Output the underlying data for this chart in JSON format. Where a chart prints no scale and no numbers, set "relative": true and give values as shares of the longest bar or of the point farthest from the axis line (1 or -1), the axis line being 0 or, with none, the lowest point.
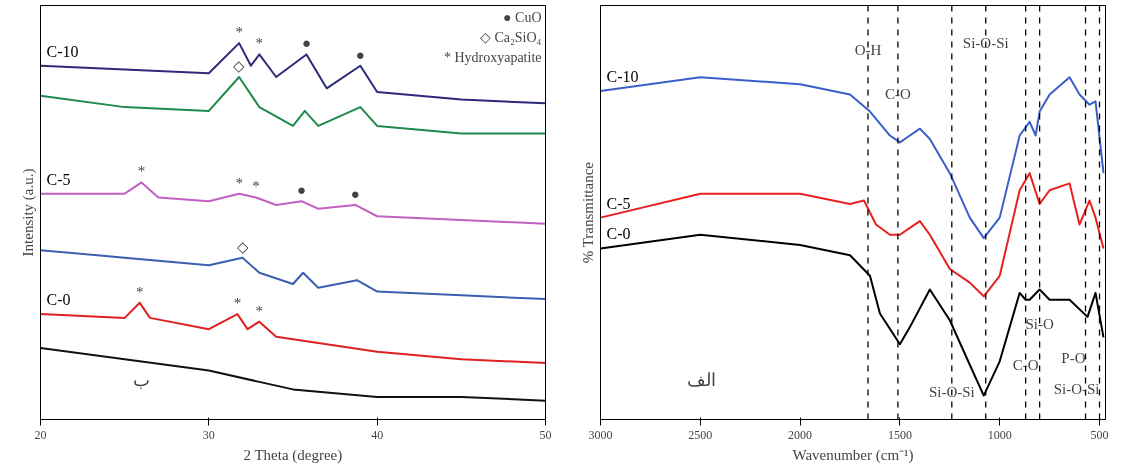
{
  "chart_data": [
    {
      "type": "line",
      "relative": true,
      "xlabel": "2 Theta (degree)",
      "ylabel": "Intensity (a.u.)",
      "xlim": [
        20,
        50
      ],
      "xticks": [
        20,
        30,
        40,
        50
      ],
      "tick_labels": "x",
      "grid": false,
      "legend": false,
      "series": [
        {
          "name": "C-10",
          "color": "#2e2a7a",
          "x": [
            20,
            25,
            30,
            31.8,
            32.5,
            33,
            34,
            35.8,
            37,
            39,
            40,
            45,
            50
          ],
          "values": [
            0.94,
            0.93,
            0.92,
            1.0,
            0.94,
            0.97,
            0.91,
            0.97,
            0.88,
            0.94,
            0.87,
            0.85,
            0.84
          ]
        },
        {
          "color": "#1f8a4a",
          "x": [
            20,
            25,
            30,
            31.8,
            33,
            35,
            35.7,
            36.5,
            39,
            40,
            45,
            50
          ],
          "values": [
            0.86,
            0.83,
            0.82,
            0.91,
            0.83,
            0.78,
            0.82,
            0.78,
            0.83,
            0.78,
            0.76,
            0.76
          ]
        },
        {
          "name": "C-5",
          "color": "#c060c0",
          "x": [
            20,
            25,
            26,
            27,
            30,
            31.8,
            32.8,
            34,
            35.5,
            36.5,
            38.7,
            40,
            45,
            50
          ],
          "values": [
            0.6,
            0.6,
            0.63,
            0.59,
            0.58,
            0.6,
            0.59,
            0.57,
            0.58,
            0.56,
            0.57,
            0.54,
            0.53,
            0.52
          ]
        },
        {
          "color": "#3a5fb0",
          "x": [
            20,
            25,
            30,
            32,
            33,
            35,
            35.6,
            36.5,
            38.8,
            40,
            45,
            50
          ],
          "values": [
            0.45,
            0.43,
            0.41,
            0.43,
            0.39,
            0.36,
            0.39,
            0.35,
            0.37,
            0.34,
            0.33,
            0.32
          ]
        },
        {
          "name": "C-0",
          "color": "#e02020",
          "x": [
            20,
            25,
            25.9,
            26.5,
            30,
            31.7,
            32.3,
            33,
            34,
            40,
            45,
            50
          ],
          "values": [
            0.28,
            0.27,
            0.31,
            0.27,
            0.24,
            0.28,
            0.24,
            0.26,
            0.22,
            0.18,
            0.16,
            0.15
          ]
        },
        {
          "color": "#111111",
          "x": [
            20,
            25,
            30,
            33,
            35,
            40,
            45,
            50
          ],
          "values": [
            0.19,
            0.16,
            0.13,
            0.1,
            0.08,
            0.06,
            0.06,
            0.05
          ]
        }
      ],
      "annotations": [
        "● CuO",
        "◇ Ca₂SiO₄",
        "* Hydroxyapatite",
        "ب",
        {
          "text": "*",
          "x": 31.8,
          "y": 1.0
        },
        {
          "text": "*",
          "x": 33,
          "y": 0.97
        },
        {
          "text": "●",
          "x": 35.8,
          "y": 0.97
        },
        {
          "text": "●",
          "x": 39,
          "y": 0.94
        },
        {
          "text": "◇",
          "x": 31.8,
          "y": 0.91
        },
        {
          "text": "*",
          "x": 26,
          "y": 0.63
        },
        {
          "text": "*",
          "x": 31.8,
          "y": 0.6
        },
        {
          "text": "*",
          "x": 32.8,
          "y": 0.59
        },
        {
          "text": "●",
          "x": 35.5,
          "y": 0.58
        },
        {
          "text": "●",
          "x": 38.7,
          "y": 0.57
        },
        {
          "text": "◇",
          "x": 32,
          "y": 0.43
        },
        {
          "text": "*",
          "x": 25.9,
          "y": 0.31
        },
        {
          "text": "*",
          "x": 31.7,
          "y": 0.28
        },
        {
          "text": "*",
          "x": 33,
          "y": 0.26
        }
      ]
    },
    {
      "type": "line",
      "relative": true,
      "xlabel": "Wavenumber (cm⁻¹)",
      "ylabel": "% Transmittance",
      "xlim": [
        3000,
        470
      ],
      "xticks": [
        3000,
        2500,
        2000,
        1500,
        1000,
        500
      ],
      "tick_labels": "x",
      "grid": false,
      "legend": false,
      "series": [
        {
          "name": "C-10",
          "color": "#3a5fc8",
          "x": [
            3000,
            2500,
            2000,
            1750,
            1650,
            1550,
            1500,
            1450,
            1400,
            1350,
            1250,
            1150,
            1080,
            1000,
            900,
            850,
            820,
            800,
            750,
            650,
            600,
            550,
            520,
            480
          ],
          "values": [
            0.96,
            1.0,
            0.98,
            0.95,
            0.9,
            0.83,
            0.81,
            0.83,
            0.85,
            0.82,
            0.72,
            0.59,
            0.53,
            0.59,
            0.83,
            0.87,
            0.83,
            0.9,
            0.95,
            1.0,
            0.95,
            0.92,
            0.93,
            0.72
          ]
        },
        {
          "name": "C-5",
          "color": "#e82020",
          "x": [
            3000,
            2500,
            2000,
            1750,
            1680,
            1620,
            1550,
            1500,
            1450,
            1400,
            1350,
            1250,
            1150,
            1080,
            1000,
            900,
            850,
            800,
            750,
            650,
            600,
            550,
            520,
            480
          ],
          "values": [
            0.59,
            0.66,
            0.66,
            0.63,
            0.64,
            0.57,
            0.54,
            0.54,
            0.56,
            0.58,
            0.54,
            0.44,
            0.4,
            0.36,
            0.42,
            0.67,
            0.72,
            0.63,
            0.67,
            0.69,
            0.57,
            0.64,
            0.59,
            0.5
          ]
        },
        {
          "name": "C-0",
          "color": "#000000",
          "x": [
            3000,
            2500,
            2000,
            1750,
            1650,
            1600,
            1500,
            1450,
            1350,
            1250,
            1150,
            1080,
            1000,
            900,
            870,
            850,
            800,
            750,
            650,
            560,
            520,
            480
          ],
          "values": [
            0.5,
            0.54,
            0.51,
            0.48,
            0.42,
            0.31,
            0.22,
            0.27,
            0.38,
            0.29,
            0.16,
            0.07,
            0.17,
            0.37,
            0.35,
            0.35,
            0.38,
            0.35,
            0.35,
            0.3,
            0.37,
            0.24
          ]
        }
      ],
      "ref_lines": [
        {
          "axis": "x",
          "value": 1660,
          "line_style": "dashed",
          "color": "#000000"
        },
        {
          "axis": "x",
          "value": 1510,
          "line_style": "dashed",
          "color": "#000000"
        },
        {
          "axis": "x",
          "value": 1240,
          "line_style": "dashed",
          "color": "#000000"
        },
        {
          "axis": "x",
          "value": 1070,
          "line_style": "dashed",
          "color": "#000000"
        },
        {
          "axis": "x",
          "value": 870,
          "line_style": "dashed",
          "color": "#000000"
        },
        {
          "axis": "x",
          "value": 800,
          "line_style": "dashed",
          "color": "#000000"
        },
        {
          "axis": "x",
          "value": 570,
          "line_style": "dashed",
          "color": "#000000"
        },
        {
          "axis": "x",
          "value": 500,
          "line_style": "dashed",
          "color": "#000000"
        }
      ],
      "annotations": [
        "الف",
        {
          "text": "O-H",
          "x": 1660,
          "y": 1.08
        },
        {
          "text": "C-O",
          "x": 1510,
          "y": 0.95
        },
        {
          "text": "Si-O-Si",
          "x": 1070,
          "y": 1.1
        },
        {
          "text": "Si-O",
          "x": 800,
          "y": 0.28
        },
        {
          "text": "C-O",
          "x": 870,
          "y": 0.16
        },
        {
          "text": "P-O",
          "x": 570,
          "y": 0.18
        },
        {
          "text": "Si-O-Si",
          "x": 500,
          "y": 0.09
        },
        {
          "text": "Si-O-Si",
          "x": 1240,
          "y": 0.08
        }
      ]
    }
  ]
}
